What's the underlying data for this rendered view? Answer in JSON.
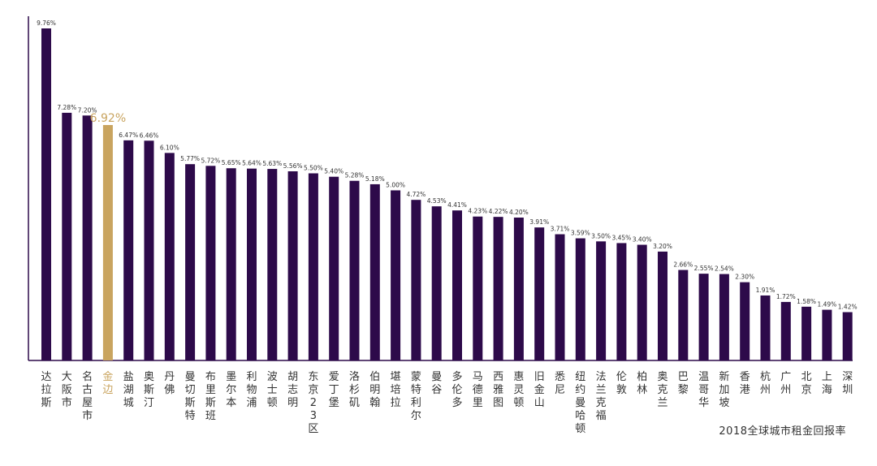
{
  "chart_data": {
    "type": "bar",
    "title": "2018全球城市租金回报率",
    "categories": [
      "达拉斯",
      "大阪市",
      "名古屋市",
      "金边",
      "盐湖城",
      "奥斯汀",
      "丹佛",
      "曼切斯特",
      "布里斯班",
      "墨尔本",
      "利物浦",
      "波士顿",
      "胡志明",
      "东京23区",
      "爱丁堡",
      "洛杉矶",
      "伯明翰",
      "堪培拉",
      "蒙特利尔",
      "曼谷",
      "多伦多",
      "马德里",
      "西雅图",
      "惠灵顿",
      "旧金山",
      "悉尼",
      "纽约曼哈顿",
      "法兰克福",
      "伦敦",
      "柏林",
      "奥克兰",
      "巴黎",
      "温哥华",
      "新加坡",
      "香港",
      "杭州",
      "广州",
      "北京",
      "上海",
      "深圳"
    ],
    "value_labels": [
      "9.76%",
      "7.28%",
      "7.20%",
      "6.92%",
      "6.47%",
      "6.46%",
      "6.10%",
      "5.77%",
      "5.72%",
      "5.65%",
      "5.64%",
      "5.63%",
      "5.56%",
      "5.50%",
      "5.40%",
      "5.28%",
      "5.18%",
      "5.00%",
      "4.72%",
      "4.53%",
      "4.41%",
      "4.23%",
      "4.22%",
      "4.20%",
      "3.91%",
      "3.71%",
      "3.59%",
      "3.50%",
      "3.45%",
      "3.40%",
      "3.20%",
      "2.66%",
      "2.55%",
      "2.54%",
      "2.30%",
      "1.91%",
      "1.72%",
      "1.58%",
      "1.49%",
      "1.42%"
    ],
    "values": [
      9.76,
      7.28,
      7.2,
      6.92,
      6.47,
      6.46,
      6.1,
      5.77,
      5.72,
      5.65,
      5.64,
      5.63,
      5.56,
      5.5,
      5.4,
      5.28,
      5.18,
      5.0,
      4.72,
      4.53,
      4.41,
      4.23,
      4.22,
      4.2,
      3.91,
      3.71,
      3.59,
      3.5,
      3.45,
      3.4,
      3.2,
      2.66,
      2.55,
      2.54,
      2.3,
      1.91,
      1.72,
      1.58,
      1.49,
      1.42
    ],
    "highlight_index": 3,
    "colors": {
      "bar": "#2d0a4a",
      "highlight": "#c9a45f",
      "axis": "#2d0a4a",
      "text": "#333333"
    },
    "ylim": [
      0,
      9.76
    ],
    "grid": false,
    "legend": "none"
  }
}
